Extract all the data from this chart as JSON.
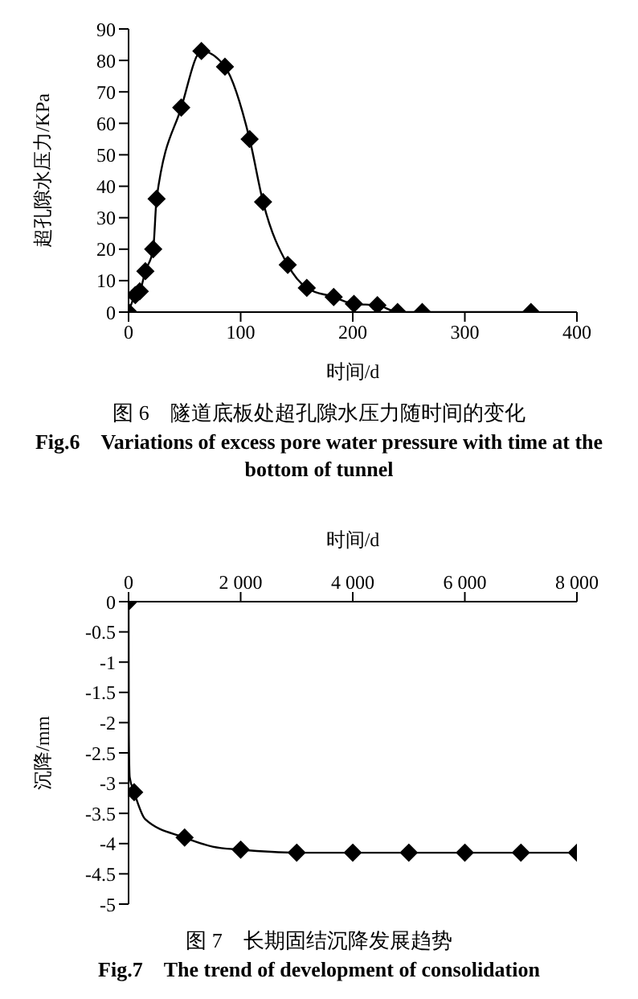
{
  "chart_data": [
    {
      "type": "line",
      "title": "图 6　隧道底板处超孔隙水压力随时间的变化",
      "subtitle": "Fig.6　Variations of excess pore water pressure with time at the bottom of tunnel",
      "xlabel": "时间/d",
      "ylabel": "超孔隙水压力/KPa",
      "xlim": [
        0,
        400
      ],
      "xticks": [
        0,
        100,
        200,
        300,
        400
      ],
      "ylim": [
        0,
        90
      ],
      "yticks": [
        0,
        10,
        20,
        30,
        40,
        50,
        60,
        70,
        80,
        90
      ],
      "marker": "diamond",
      "line_style": "solid",
      "series": [
        {
          "color": "#000000",
          "x": [
            0,
            6,
            10,
            15,
            22,
            25,
            47,
            65,
            86,
            108,
            120,
            142,
            159,
            183,
            201,
            222,
            240,
            262,
            359
          ],
          "values": [
            0,
            5.4,
            6.6,
            13,
            20,
            36,
            65,
            83,
            78,
            55,
            35,
            15,
            7.7,
            4.8,
            2.6,
            2.2,
            0,
            0,
            0
          ]
        }
      ]
    },
    {
      "type": "line",
      "title": "图 7　长期固结沉降发展趋势",
      "subtitle": "Fig.7　The trend of development of consolidation",
      "xlabel": "时间/d",
      "ylabel": "沉降/mm",
      "xlim": [
        0,
        8000
      ],
      "xticks": [
        0,
        {
          "value": 2000,
          "label": "2 000"
        },
        {
          "value": 4000,
          "label": "4 000"
        },
        {
          "value": 6000,
          "label": "6 000"
        },
        {
          "value": 8000,
          "label": "8 000"
        }
      ],
      "ylim": [
        -5,
        0
      ],
      "yticks": [
        0,
        -0.5,
        -1,
        -1.5,
        -2,
        -2.5,
        -3,
        -3.5,
        -4,
        -4.5,
        -5
      ],
      "line_style": "solid",
      "series": [
        {
          "marker": "none",
          "color": "#000000",
          "x": [
            0,
            5,
            20,
            100,
            300,
            1000,
            1500,
            2000,
            3000,
            4000,
            5000,
            6000,
            7000,
            8000
          ],
          "values": [
            0,
            -2.2,
            -2.9,
            -3.15,
            -3.6,
            -3.9,
            -4.05,
            -4.1,
            -4.15,
            -4.15,
            -4.15,
            -4.15,
            -4.15,
            -4.15
          ]
        },
        {
          "type": "scatter",
          "marker": "diamond",
          "color": "#000000",
          "x": [
            0,
            100,
            1000,
            2000,
            3000,
            4000,
            5000,
            6000,
            7000,
            8000
          ],
          "values": [
            0,
            -3.15,
            -3.9,
            -4.1,
            -4.15,
            -4.15,
            -4.15,
            -4.15,
            -4.15,
            -4.15
          ]
        }
      ]
    }
  ]
}
